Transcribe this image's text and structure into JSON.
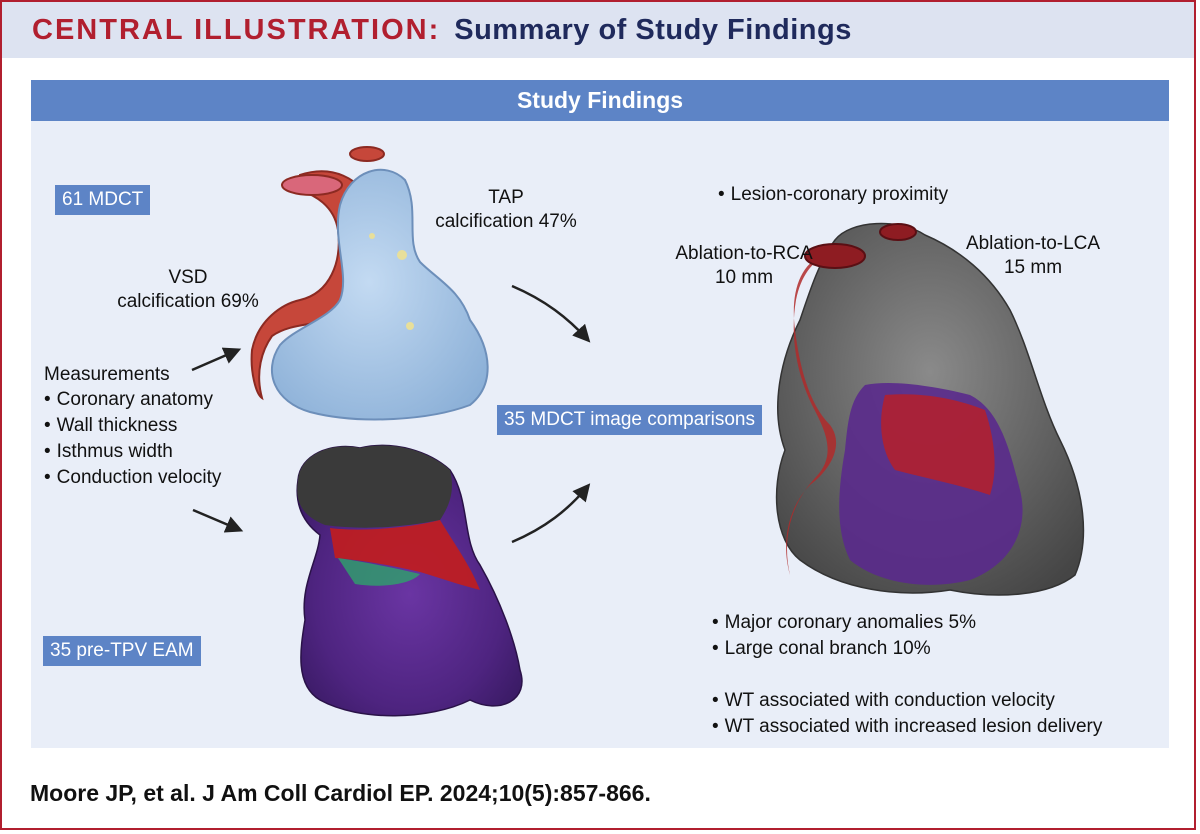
{
  "header": {
    "label": "CENTRAL ILLUSTRATION:",
    "title": "Summary of Study Findings"
  },
  "banner": {
    "title": "Study Findings"
  },
  "tags": {
    "mdct": "61 MDCT",
    "eam": "35 pre-TPV EAM",
    "comparisons": "35 MDCT image comparisons"
  },
  "labels": {
    "tap_line1": "TAP",
    "tap_line2": "calcification 47%",
    "vsd_line1": "VSD",
    "vsd_line2": "calcification 69%",
    "ablation_rca_line1": "Ablation-to-RCA",
    "ablation_rca_line2": "10 mm",
    "ablation_lca_line1": "Ablation-to-LCA",
    "ablation_lca_line2": "15 mm"
  },
  "measurements": {
    "title": "Measurements",
    "items": [
      "Coronary anatomy",
      "Wall thickness",
      "Isthmus width",
      "Conduction velocity"
    ]
  },
  "findings": {
    "proximity": "Lesion-coronary proximity",
    "coronary": [
      "Major coronary anomalies 5%",
      "Large conal branch 10%"
    ],
    "wt": [
      "WT associated with conduction velocity",
      "WT associated with increased lesion delivery"
    ]
  },
  "illustration_colors": {
    "aorta": "#c6473a",
    "ct_heart": "#a8c6e8",
    "eam_purple": "#5a2a8c",
    "eam_red": "#c21d1d",
    "eam_dark": "#3a3a3a",
    "arrow": "#222222"
  },
  "citation": "Moore JP, et al. J Am Coll Cardiol EP. 2024;10(5):857-866."
}
